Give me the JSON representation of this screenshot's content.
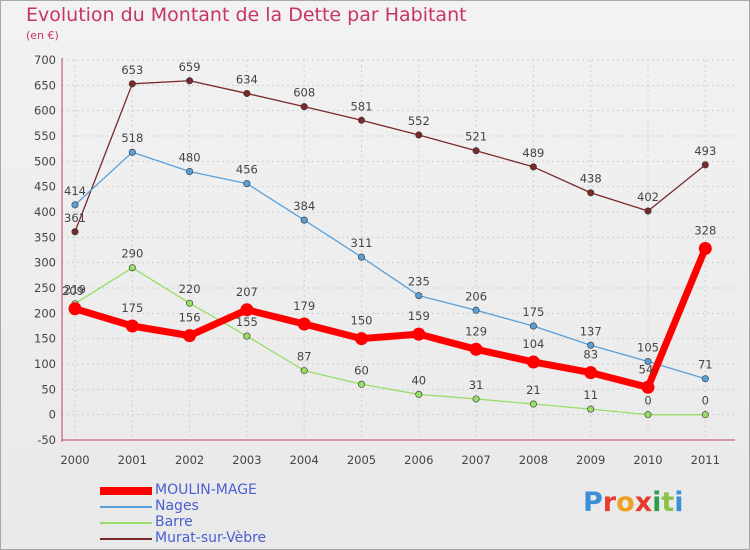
{
  "header": {
    "title": "Evolution du Montant de la Dette par Habitant",
    "subtitle": "(en €)"
  },
  "logo": {
    "letters": [
      "P",
      "r",
      "o",
      "x",
      "i",
      "t",
      "i"
    ],
    "colors": [
      "#3b8fd6",
      "#e63b2e",
      "#f0a020",
      "#e63b2e",
      "#2e9e4a",
      "#8bc34a",
      "#3b8fd6"
    ]
  },
  "chart_data": {
    "type": "line",
    "title": "Evolution du Montant de la Dette par Habitant",
    "subtitle": "(en €)",
    "xlabel": "",
    "ylabel": "",
    "x": [
      "2000",
      "2001",
      "2002",
      "2003",
      "2004",
      "2005",
      "2006",
      "2007",
      "2008",
      "2009",
      "2010",
      "2011"
    ],
    "ylim": [
      -50,
      700
    ],
    "yticks": [
      -50,
      0,
      50,
      100,
      150,
      200,
      250,
      300,
      350,
      400,
      450,
      500,
      550,
      600,
      650,
      700
    ],
    "grid": true,
    "legend_position": "bottom-left",
    "series": [
      {
        "name": "Murat-sur-Vèbre",
        "color": "#7a2a2a",
        "values": [
          361,
          653,
          659,
          634,
          608,
          581,
          552,
          521,
          489,
          438,
          402,
          493
        ],
        "labels": [
          "361",
          "653",
          "659",
          "634",
          "608",
          "581",
          "552",
          "521",
          "489",
          "438",
          "402",
          "493"
        ]
      },
      {
        "name": "Nages",
        "color": "#5aa0d8",
        "values": [
          414,
          518,
          480,
          456,
          384,
          311,
          235,
          206,
          175,
          137,
          105,
          71
        ],
        "labels": [
          "414",
          "518",
          "480",
          "456",
          "384",
          "311",
          "235",
          "206",
          "175",
          "137",
          "105",
          "71"
        ]
      },
      {
        "name": "Barre",
        "color": "#99dd66",
        "values": [
          219,
          290,
          220,
          155,
          87,
          60,
          40,
          31,
          21,
          11,
          0,
          0
        ],
        "labels": [
          "219",
          "290",
          "220",
          "155",
          "87",
          "60",
          "40",
          "31",
          "21",
          "11",
          "0",
          "0"
        ]
      },
      {
        "name": "MOULIN-MAGE",
        "color": "#ff0000",
        "values": [
          209,
          175,
          156,
          207,
          179,
          150,
          159,
          129,
          104,
          83,
          54,
          328
        ],
        "labels": [
          "209",
          "175",
          "156",
          "207",
          "179",
          "150",
          "159",
          "129",
          "104",
          "83",
          "54",
          "328"
        ]
      }
    ],
    "legend": [
      {
        "name": "MOULIN-MAGE",
        "color": "#ff0000"
      },
      {
        "name": "Nages",
        "color": "#5aa0d8"
      },
      {
        "name": "Barre",
        "color": "#99dd66"
      },
      {
        "name": "Murat-sur-Vèbre",
        "color": "#7a2a2a"
      }
    ]
  }
}
